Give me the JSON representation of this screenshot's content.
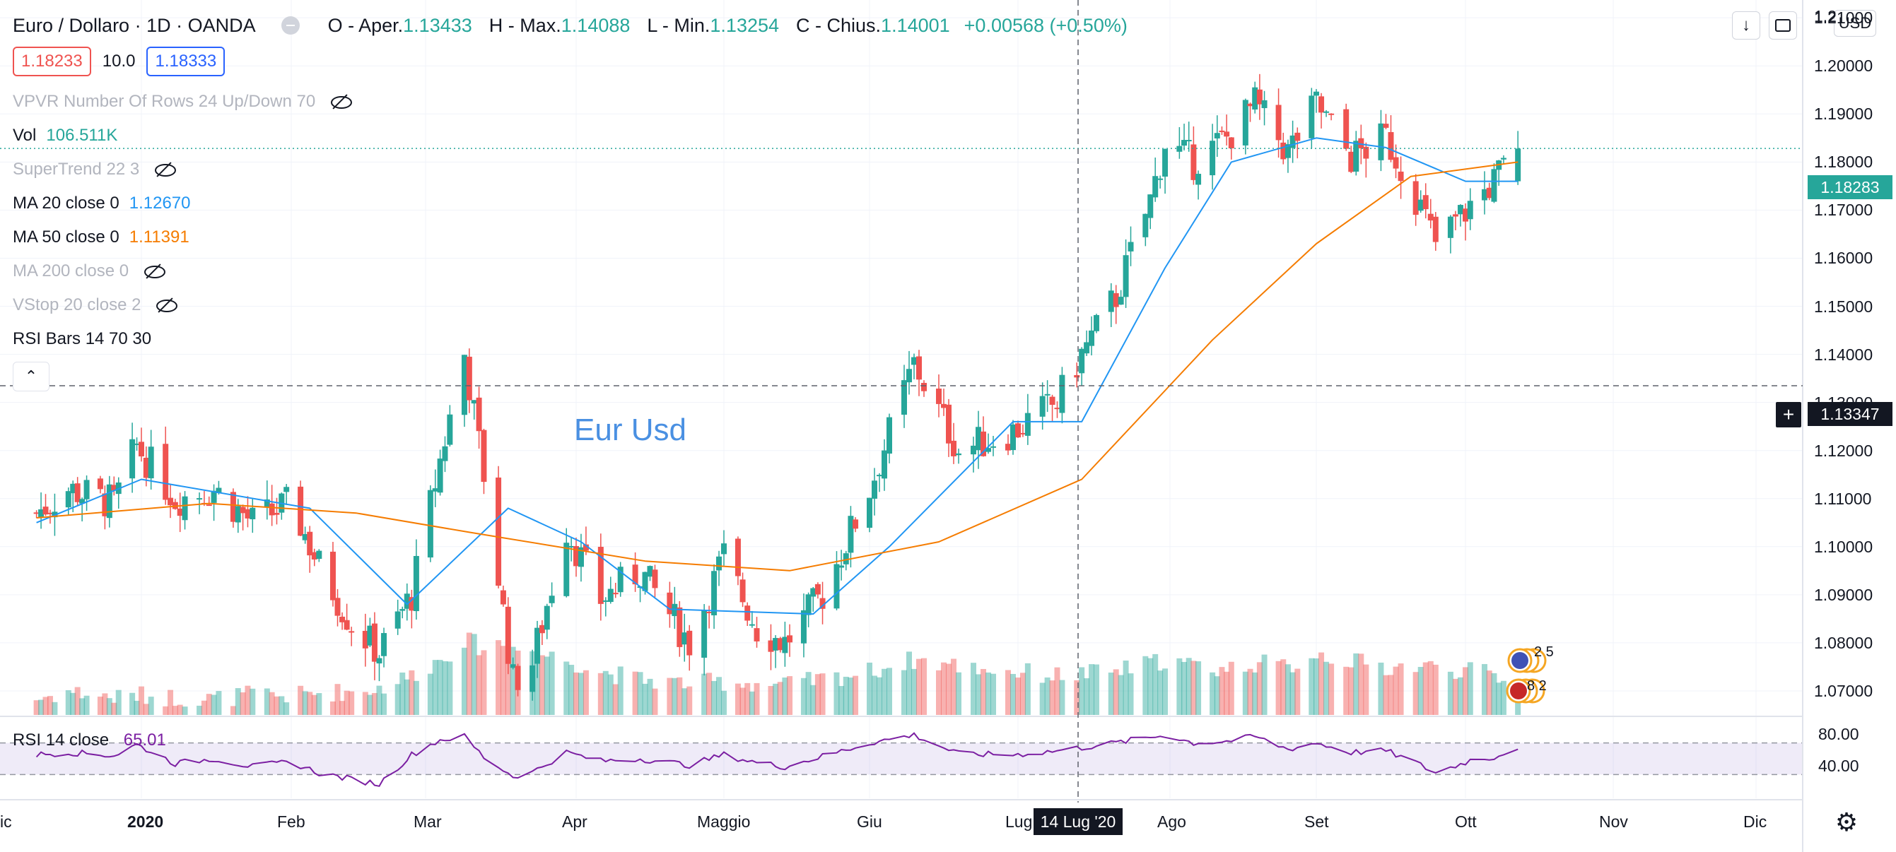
{
  "header": {
    "symbol": "Euro / Dollaro · 1D · OANDA",
    "open_label": "O - Aper.",
    "open_value": "1.13433",
    "high_label": "H - Max.",
    "high_value": "1.14088",
    "low_label": "L - Min.",
    "low_value": "1.13254",
    "close_label": "C - Chius.",
    "close_value": "1.14001",
    "change": "+0.00568 (+0.50%)"
  },
  "order": {
    "sell": "1.18233",
    "spread": "10.0",
    "buy": "1.18333"
  },
  "indicators": [
    {
      "name": "VPVR Number Of Rows 24 Up/Down 70",
      "value": "",
      "muted": true,
      "hidden": true
    },
    {
      "name": "Vol",
      "value": "106.511K",
      "muted": false,
      "hidden": false,
      "color": "#26a69a"
    },
    {
      "name": "SuperTrend 22 3",
      "value": "",
      "muted": true,
      "hidden": true
    },
    {
      "name": "MA 20 close 0",
      "value": "1.12670",
      "muted": false,
      "hidden": false,
      "color": "#2196f3"
    },
    {
      "name": "MA 50 close 0",
      "value": "1.11391",
      "muted": false,
      "hidden": false,
      "color": "#f57c00"
    },
    {
      "name": "MA 200 close 0",
      "value": "",
      "muted": true,
      "hidden": true
    },
    {
      "name": "VStop 20 close 2",
      "value": "",
      "muted": true,
      "hidden": true
    },
    {
      "name": "RSI Bars 14 70 30",
      "value": "",
      "muted": false,
      "hidden": false
    }
  ],
  "toolbar": {
    "currency": "USD",
    "download_icon": "arrow-down-icon",
    "fullscreen_icon": "fullscreen-icon",
    "collapse_icon": "chevron-up-icon",
    "settings_icon": "gear-icon"
  },
  "annotation": "Eur Usd",
  "rsi": {
    "label": "RSI 14 close",
    "value": "65.01"
  },
  "crosshair": {
    "date": "14 Lug '20",
    "price": "1.13347"
  },
  "last_price": "1.18283",
  "events": {
    "eu": "2 5",
    "us": "8 2"
  },
  "colors": {
    "up": "#26a69a",
    "down": "#ef5350",
    "ma20": "#2196f3",
    "ma50": "#f57c00",
    "rsi": "#7b1fa2"
  },
  "chart_data": {
    "type": "candlestick",
    "price_axis": {
      "min": 1.065,
      "max": 1.2137,
      "ticks": [
        "1.21000",
        "1.20000",
        "1.19000",
        "1.18000",
        "1.17000",
        "1.16000",
        "1.15000",
        "1.14000",
        "1.13000",
        "1.12000",
        "1.11000",
        "1.10000",
        "1.09000",
        "1.08000",
        "1.07000"
      ]
    },
    "rsi_axis": {
      "min": 0,
      "max": 100,
      "ticks": [
        "80.00",
        "40.00"
      ],
      "band": [
        30,
        70
      ]
    },
    "time_axis": {
      "labels": [
        "ic",
        "2020",
        "Feb",
        "Mar",
        "Apr",
        "Maggio",
        "Giu",
        "Lug",
        "Ago",
        "Set",
        "Ott",
        "Nov",
        "Dic"
      ],
      "bold": [
        "2020"
      ]
    },
    "keyframes": [
      {
        "d": "2019-12-09",
        "c": 1.107,
        "v": 0.2,
        "r": 55
      },
      {
        "d": "2019-12-16",
        "c": 1.112,
        "v": 0.3,
        "r": 58
      },
      {
        "d": "2019-12-26",
        "c": 1.109,
        "v": 0.22,
        "r": 54
      },
      {
        "d": "2019-12-31",
        "c": 1.121,
        "v": 0.25,
        "r": 68
      },
      {
        "d": "2020-01-08",
        "c": 1.11,
        "v": 0.22,
        "r": 44
      },
      {
        "d": "2020-01-16",
        "c": 1.112,
        "v": 0.2,
        "r": 50
      },
      {
        "d": "2020-01-24",
        "c": 1.105,
        "v": 0.26,
        "r": 40
      },
      {
        "d": "2020-02-01",
        "c": 1.109,
        "v": 0.24,
        "r": 46
      },
      {
        "d": "2020-02-07",
        "c": 1.096,
        "v": 0.28,
        "r": 32
      },
      {
        "d": "2020-02-14",
        "c": 1.084,
        "v": 0.3,
        "r": 24
      },
      {
        "d": "2020-02-20",
        "c": 1.078,
        "v": 0.34,
        "r": 18
      },
      {
        "d": "2020-02-27",
        "c": 1.09,
        "v": 0.5,
        "r": 55
      },
      {
        "d": "2020-03-04",
        "c": 1.118,
        "v": 0.7,
        "r": 74
      },
      {
        "d": "2020-03-09",
        "c": 1.14,
        "v": 0.95,
        "r": 78
      },
      {
        "d": "2020-03-13",
        "c": 1.115,
        "v": 0.85,
        "r": 52
      },
      {
        "d": "2020-03-19",
        "c": 1.072,
        "v": 0.95,
        "r": 28
      },
      {
        "d": "2020-03-23",
        "c": 1.076,
        "v": 0.8,
        "r": 33
      },
      {
        "d": "2020-03-30",
        "c": 1.104,
        "v": 0.7,
        "r": 58
      },
      {
        "d": "2020-04-06",
        "c": 1.089,
        "v": 0.55,
        "r": 47
      },
      {
        "d": "2020-04-14",
        "c": 1.095,
        "v": 0.45,
        "r": 50
      },
      {
        "d": "2020-04-24",
        "c": 1.08,
        "v": 0.4,
        "r": 42
      },
      {
        "d": "2020-05-01",
        "c": 1.098,
        "v": 0.42,
        "r": 55
      },
      {
        "d": "2020-05-08",
        "c": 1.083,
        "v": 0.4,
        "r": 45
      },
      {
        "d": "2020-05-14",
        "c": 1.08,
        "v": 0.38,
        "r": 40
      },
      {
        "d": "2020-05-22",
        "c": 1.09,
        "v": 0.45,
        "r": 53
      },
      {
        "d": "2020-06-01",
        "c": 1.112,
        "v": 0.55,
        "r": 70
      },
      {
        "d": "2020-06-10",
        "c": 1.138,
        "v": 0.7,
        "r": 80
      },
      {
        "d": "2020-06-19",
        "c": 1.12,
        "v": 0.62,
        "r": 56
      },
      {
        "d": "2020-06-30",
        "c": 1.124,
        "v": 0.55,
        "r": 55
      },
      {
        "d": "2020-07-09",
        "c": 1.13,
        "v": 0.5,
        "r": 60
      },
      {
        "d": "2020-07-14",
        "c": 1.14,
        "v": 0.52,
        "r": 64
      },
      {
        "d": "2020-07-21",
        "c": 1.152,
        "v": 0.55,
        "r": 70
      },
      {
        "d": "2020-07-28",
        "c": 1.172,
        "v": 0.65,
        "r": 77
      },
      {
        "d": "2020-07-31",
        "c": 1.184,
        "v": 0.7,
        "r": 80
      },
      {
        "d": "2020-08-06",
        "c": 1.18,
        "v": 0.62,
        "r": 70
      },
      {
        "d": "2020-08-13",
        "c": 1.185,
        "v": 0.58,
        "r": 72
      },
      {
        "d": "2020-08-19",
        "c": 1.192,
        "v": 0.66,
        "r": 78
      },
      {
        "d": "2020-08-26",
        "c": 1.182,
        "v": 0.6,
        "r": 62
      },
      {
        "d": "2020-09-01",
        "c": 1.192,
        "v": 0.78,
        "r": 70
      },
      {
        "d": "2020-09-08",
        "c": 1.181,
        "v": 0.68,
        "r": 58
      },
      {
        "d": "2020-09-15",
        "c": 1.185,
        "v": 0.6,
        "r": 60
      },
      {
        "d": "2020-09-21",
        "c": 1.173,
        "v": 0.62,
        "r": 45
      },
      {
        "d": "2020-09-25",
        "c": 1.163,
        "v": 0.6,
        "r": 32
      },
      {
        "d": "2020-10-02",
        "c": 1.171,
        "v": 0.56,
        "r": 48
      },
      {
        "d": "2020-10-07",
        "c": 1.176,
        "v": 0.5,
        "r": 52
      },
      {
        "d": "2020-10-12",
        "c": 1.1828,
        "v": 0.28,
        "r": 65
      }
    ],
    "ma20_points": [
      [
        "2019-12-09",
        1.105
      ],
      [
        "2020-01-01",
        1.114
      ],
      [
        "2020-02-05",
        1.108
      ],
      [
        "2020-02-26",
        1.088
      ],
      [
        "2020-03-18",
        1.108
      ],
      [
        "2020-04-02",
        1.101
      ],
      [
        "2020-04-20",
        1.087
      ],
      [
        "2020-05-20",
        1.086
      ],
      [
        "2020-06-05",
        1.1
      ],
      [
        "2020-06-30",
        1.126
      ],
      [
        "2020-07-14",
        1.126
      ],
      [
        "2020-07-31",
        1.158
      ],
      [
        "2020-08-14",
        1.18
      ],
      [
        "2020-09-01",
        1.185
      ],
      [
        "2020-09-15",
        1.183
      ],
      [
        "2020-10-01",
        1.176
      ],
      [
        "2020-10-12",
        1.176
      ]
    ],
    "ma50_points": [
      [
        "2019-12-09",
        1.106
      ],
      [
        "2020-01-15",
        1.109
      ],
      [
        "2020-02-15",
        1.107
      ],
      [
        "2020-03-10",
        1.103
      ],
      [
        "2020-04-15",
        1.097
      ],
      [
        "2020-05-15",
        1.095
      ],
      [
        "2020-06-15",
        1.101
      ],
      [
        "2020-07-14",
        1.114
      ],
      [
        "2020-08-10",
        1.143
      ],
      [
        "2020-09-01",
        1.163
      ],
      [
        "2020-09-20",
        1.177
      ],
      [
        "2020-10-12",
        1.18
      ]
    ]
  }
}
